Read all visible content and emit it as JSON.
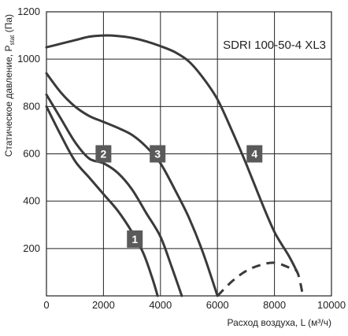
{
  "chart_data": {
    "type": "line",
    "title": "SDRI 100-50-4 XL3",
    "xlabel": "Расход воздуха, L (м³/ч)",
    "ylabel_main": "Статическое давление, P",
    "ylabel_sub": "stat",
    "ylabel_tail": " (Па)",
    "xlim": [
      0,
      10000
    ],
    "ylim": [
      0,
      1200
    ],
    "xticks": [
      0,
      2000,
      4000,
      6000,
      8000,
      10000
    ],
    "yticks": [
      200,
      400,
      600,
      800,
      1000,
      1200
    ],
    "grid": true,
    "series": [
      {
        "name": "1",
        "label_at": [
          3100,
          240
        ],
        "points": [
          [
            0,
            800
          ],
          [
            500,
            680
          ],
          [
            1000,
            570
          ],
          [
            1500,
            500
          ],
          [
            2000,
            430
          ],
          [
            2500,
            360
          ],
          [
            3000,
            270
          ],
          [
            3400,
            180
          ],
          [
            3700,
            80
          ],
          [
            3900,
            0
          ]
        ]
      },
      {
        "name": "2",
        "label_at": [
          2000,
          600
        ],
        "points": [
          [
            0,
            850
          ],
          [
            500,
            750
          ],
          [
            1000,
            650
          ],
          [
            1500,
            580
          ],
          [
            2000,
            560
          ],
          [
            2500,
            520
          ],
          [
            3000,
            450
          ],
          [
            3500,
            350
          ],
          [
            4000,
            250
          ],
          [
            4400,
            120
          ],
          [
            4750,
            0
          ]
        ]
      },
      {
        "name": "3",
        "label_at": [
          3900,
          600
        ],
        "points": [
          [
            0,
            940
          ],
          [
            500,
            860
          ],
          [
            1000,
            800
          ],
          [
            1500,
            760
          ],
          [
            2000,
            735
          ],
          [
            2500,
            710
          ],
          [
            3000,
            680
          ],
          [
            3500,
            630
          ],
          [
            4000,
            560
          ],
          [
            4500,
            450
          ],
          [
            5000,
            330
          ],
          [
            5500,
            180
          ],
          [
            6000,
            0
          ]
        ]
      },
      {
        "name": "4",
        "label_at": [
          7300,
          600
        ],
        "points": [
          [
            0,
            1050
          ],
          [
            500,
            1065
          ],
          [
            1000,
            1080
          ],
          [
            1500,
            1095
          ],
          [
            2000,
            1100
          ],
          [
            2500,
            1098
          ],
          [
            3000,
            1090
          ],
          [
            3500,
            1075
          ],
          [
            4000,
            1055
          ],
          [
            4500,
            1030
          ],
          [
            5000,
            990
          ],
          [
            5500,
            920
          ],
          [
            6000,
            830
          ],
          [
            6500,
            700
          ],
          [
            7000,
            560
          ],
          [
            7500,
            410
          ],
          [
            8000,
            270
          ],
          [
            8500,
            170
          ],
          [
            8800,
            100
          ]
        ]
      },
      {
        "name": "",
        "dashed": true,
        "points": [
          [
            6000,
            0
          ],
          [
            6500,
            60
          ],
          [
            7000,
            105
          ],
          [
            7500,
            130
          ],
          [
            8000,
            140
          ],
          [
            8500,
            120
          ],
          [
            8800,
            100
          ],
          [
            9000,
            0
          ]
        ]
      }
    ]
  }
}
